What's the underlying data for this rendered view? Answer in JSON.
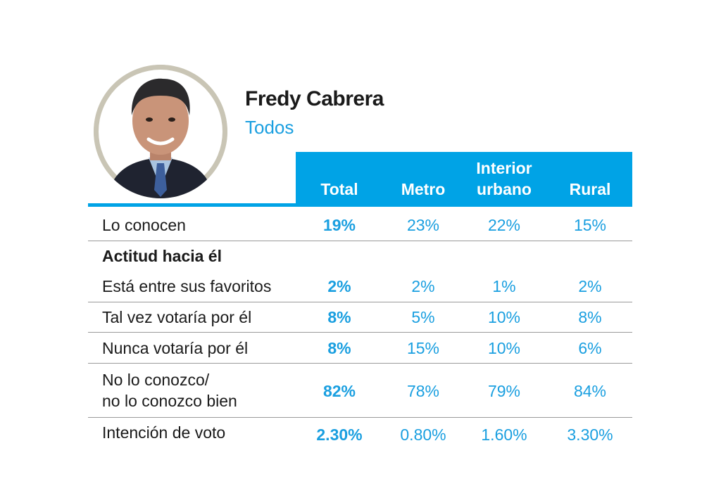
{
  "person": {
    "name": "Fredy Cabrera",
    "segment": "Todos"
  },
  "table": {
    "columns": [
      {
        "line1": "",
        "line2": "Total"
      },
      {
        "line1": "",
        "line2": "Metro"
      },
      {
        "line1": "Interior",
        "line2": "urbano"
      },
      {
        "line1": "",
        "line2": "Rural"
      }
    ],
    "rows": [
      {
        "label": "Lo conocen",
        "values": [
          "19%",
          "23%",
          "22%",
          "15%"
        ]
      },
      {
        "label": "Actitud hacia él",
        "values": []
      },
      {
        "label": "Está entre sus favoritos",
        "values": [
          "2%",
          "2%",
          "1%",
          "2%"
        ]
      },
      {
        "label": "Tal vez votaría por él",
        "values": [
          "8%",
          "5%",
          "10%",
          "8%"
        ]
      },
      {
        "label": "Nunca votaría por él",
        "values": [
          "8%",
          "15%",
          "10%",
          "6%"
        ]
      },
      {
        "label": "No lo conozco/",
        "label_line2": "no lo conozco bien",
        "values": [
          "82%",
          "78%",
          "79%",
          "84%"
        ]
      },
      {
        "label": "Intención de voto",
        "values": [
          "2.30%",
          "0.80%",
          "1.60%",
          "3.30%"
        ]
      }
    ]
  },
  "chart_data": {
    "type": "table",
    "title": "Fredy Cabrera",
    "subtitle": "Todos",
    "categories": [
      "Total",
      "Metro",
      "Interior urbano",
      "Rural"
    ],
    "series": [
      {
        "name": "Lo conocen",
        "values": [
          19,
          23,
          22,
          15
        ]
      },
      {
        "name": "Está entre sus favoritos",
        "values": [
          2,
          2,
          1,
          2
        ]
      },
      {
        "name": "Tal vez votaría por él",
        "values": [
          8,
          5,
          10,
          8
        ]
      },
      {
        "name": "Nunca votaría por él",
        "values": [
          8,
          15,
          10,
          6
        ]
      },
      {
        "name": "No lo conozco/ no lo conozco bien",
        "values": [
          82,
          78,
          79,
          84
        ]
      },
      {
        "name": "Intención de voto",
        "values": [
          2.3,
          0.8,
          1.6,
          3.3
        ]
      }
    ],
    "unit": "%"
  },
  "colors": {
    "accent": "#00a3e6",
    "value_text": "#1a9fe0",
    "rule": "#9a9a9a"
  }
}
